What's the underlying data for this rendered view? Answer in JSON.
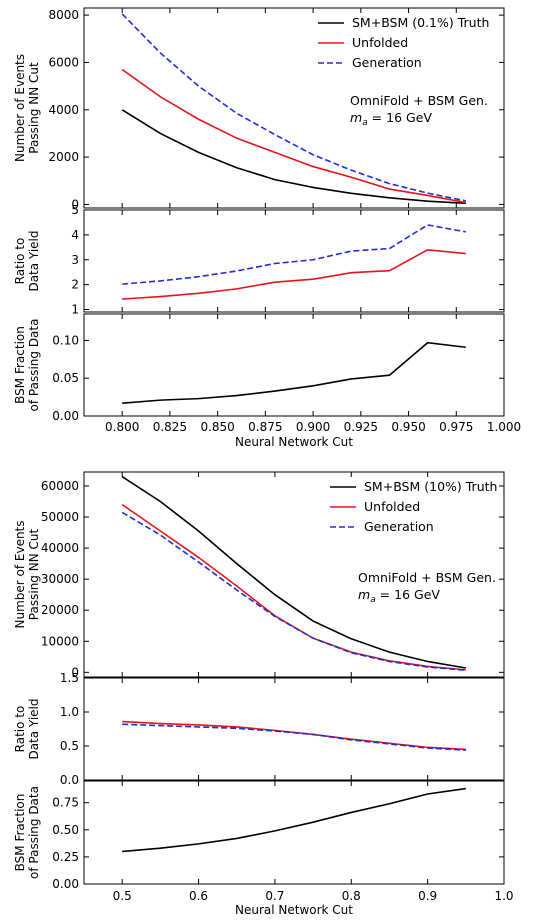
{
  "chart_data": [
    {
      "type": "line",
      "x": [
        0.8,
        0.82,
        0.84,
        0.86,
        0.88,
        0.9,
        0.92,
        0.94,
        0.96,
        0.98
      ],
      "xlim": [
        0.78,
        1.0
      ],
      "xticks": [
        "0.800",
        "0.825",
        "0.850",
        "0.875",
        "0.900",
        "0.925",
        "0.950",
        "0.975",
        "1.000"
      ],
      "xtick_values": [
        0.8,
        0.825,
        0.85,
        0.875,
        0.9,
        0.925,
        0.95,
        0.975,
        1.0
      ],
      "xlabel": "Neural Network Cut",
      "annotation": [
        "OmniFold + BSM Gen.",
        "m",
        "a",
        " = 16 GeV"
      ],
      "panels": [
        {
          "ylabel": [
            "Number of Events",
            "Passing NN Cut"
          ],
          "ylim": [
            -150,
            8300
          ],
          "yticks": [
            "0",
            "2000",
            "4000",
            "6000",
            "8000"
          ],
          "ytick_values": [
            0,
            2000,
            4000,
            6000,
            8000
          ],
          "legend": "top-right",
          "series": [
            {
              "name": "SM+BSM (0.1%) Truth",
              "color": "#000000",
              "dash": "solid",
              "values": [
                4000,
                3000,
                2200,
                1550,
                1050,
                720,
                470,
                280,
                140,
                50
              ]
            },
            {
              "name": "Unfolded",
              "color": "#e8141c",
              "dash": "solid",
              "values": [
                5700,
                4550,
                3600,
                2800,
                2200,
                1600,
                1150,
                650,
                380,
                80
              ]
            },
            {
              "name": "Generation",
              "color": "#1f2fd6",
              "dash": "dashed",
              "values": [
                8050,
                6400,
                5000,
                3850,
                2950,
                2100,
                1450,
                880,
                480,
                150
              ]
            }
          ]
        },
        {
          "ylabel": [
            "Ratio to",
            "Data Yield"
          ],
          "ylim": [
            0.9,
            5.0
          ],
          "yticks": [
            "1",
            "2",
            "3",
            "4",
            "5"
          ],
          "ytick_values": [
            1,
            2,
            3,
            4,
            5
          ],
          "series": [
            {
              "color": "#e8141c",
              "dash": "solid",
              "values": [
                1.42,
                1.52,
                1.65,
                1.83,
                2.1,
                2.22,
                2.48,
                2.56,
                3.4,
                3.25
              ]
            },
            {
              "color": "#1f2fd6",
              "dash": "dashed",
              "values": [
                2.02,
                2.15,
                2.32,
                2.55,
                2.85,
                3.0,
                3.35,
                3.45,
                4.4,
                4.12
              ]
            }
          ]
        },
        {
          "ylabel": [
            "BSM Fraction",
            "of Passing Data"
          ],
          "ylim": [
            0.0,
            0.135
          ],
          "yticks": [
            "0.00",
            "0.05",
            "0.10"
          ],
          "ytick_values": [
            0.0,
            0.05,
            0.1
          ],
          "series": [
            {
              "color": "#000000",
              "dash": "solid",
              "values": [
                0.017,
                0.021,
                0.023,
                0.027,
                0.033,
                0.04,
                0.049,
                0.054,
                0.097,
                0.091
              ]
            }
          ]
        }
      ]
    },
    {
      "type": "line",
      "x": [
        0.5,
        0.55,
        0.6,
        0.65,
        0.7,
        0.75,
        0.8,
        0.85,
        0.9,
        0.95
      ],
      "xlim": [
        0.45,
        1.0
      ],
      "xticks": [
        "0.5",
        "0.6",
        "0.7",
        "0.8",
        "0.9",
        "1.0"
      ],
      "xtick_values": [
        0.5,
        0.6,
        0.7,
        0.8,
        0.9,
        1.0
      ],
      "xlabel": "Neural Network Cut",
      "annotation": [
        "OmniFold + BSM Gen.",
        "m",
        "a",
        " = 16 GeV"
      ],
      "panels": [
        {
          "ylabel": [
            "Number of Events",
            "Passing NN Cut"
          ],
          "ylim": [
            -1500,
            64500
          ],
          "yticks": [
            "0",
            "10000",
            "20000",
            "30000",
            "40000",
            "50000",
            "60000"
          ],
          "ytick_values": [
            0,
            10000,
            20000,
            30000,
            40000,
            50000,
            60000
          ],
          "legend": "top-right",
          "series": [
            {
              "name": "SM+BSM (10%) Truth",
              "color": "#000000",
              "dash": "solid",
              "values": [
                63000,
                55000,
                45500,
                35000,
                25000,
                16500,
                10800,
                6500,
                3500,
                1400
              ]
            },
            {
              "name": "Unfolded",
              "color": "#e8141c",
              "dash": "solid",
              "values": [
                54000,
                45500,
                37000,
                27800,
                18200,
                11000,
                6500,
                3700,
                1900,
                800
              ]
            },
            {
              "name": "Generation",
              "color": "#1f2fd6",
              "dash": "dashed",
              "values": [
                51500,
                44200,
                35500,
                26500,
                18000,
                11000,
                6300,
                3500,
                1700,
                700
              ]
            }
          ]
        },
        {
          "ylabel": [
            "Ratio to",
            "Data Yield"
          ],
          "ylim": [
            0.0,
            1.5
          ],
          "yticks": [
            "0.0",
            "0.5",
            "1.0",
            "1.5"
          ],
          "ytick_values": [
            0.0,
            0.5,
            1.0,
            1.5
          ],
          "series": [
            {
              "color": "#e8141c",
              "dash": "solid",
              "values": [
                0.86,
                0.83,
                0.81,
                0.78,
                0.73,
                0.67,
                0.6,
                0.54,
                0.48,
                0.45
              ]
            },
            {
              "color": "#1f2fd6",
              "dash": "dashed",
              "values": [
                0.82,
                0.8,
                0.78,
                0.76,
                0.72,
                0.67,
                0.59,
                0.53,
                0.47,
                0.44
              ]
            }
          ]
        },
        {
          "ylabel": [
            "BSM Fraction",
            "of Passing Data"
          ],
          "ylim": [
            0.0,
            0.95
          ],
          "yticks": [
            "0.00",
            "0.25",
            "0.50",
            "0.75"
          ],
          "ytick_values": [
            0.0,
            0.25,
            0.5,
            0.75
          ],
          "series": [
            {
              "color": "#000000",
              "dash": "solid",
              "values": [
                0.3,
                0.33,
                0.37,
                0.42,
                0.49,
                0.57,
                0.66,
                0.74,
                0.83,
                0.88
              ]
            }
          ]
        }
      ]
    }
  ]
}
